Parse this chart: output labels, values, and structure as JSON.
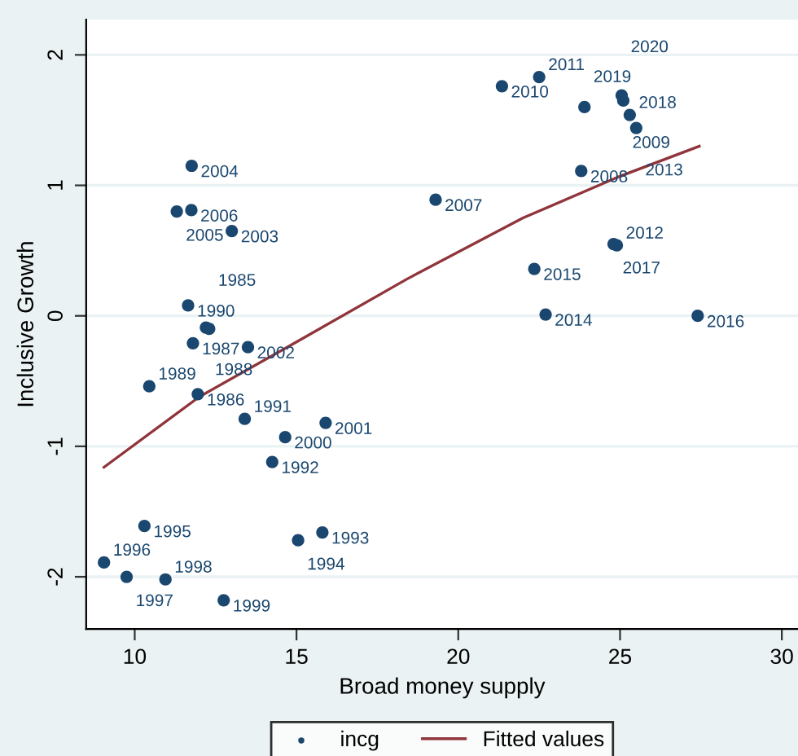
{
  "chart_data": {
    "type": "scatter",
    "xlabel": "Broad money supply",
    "ylabel": "Inclusive Growth",
    "xlim": [
      8.5,
      30.5
    ],
    "ylim": [
      -2.4,
      2.27
    ],
    "xticks": [
      10,
      15,
      20,
      25,
      30
    ],
    "yticks": [
      -2,
      -1,
      0,
      1,
      2
    ],
    "grid": "y",
    "legend": "bottom",
    "marker": "circle",
    "series": [
      {
        "name": "incg",
        "color": "#1a476f",
        "x": [
          11.76,
          11.3,
          11.75,
          13.0,
          11.65,
          12.2,
          12.3,
          11.8,
          13.5,
          19.3,
          21.35,
          22.5,
          23.9,
          25.05,
          25.1,
          25.3,
          25.5,
          23.8,
          24.8,
          24.9,
          22.35,
          22.7,
          27.4,
          10.45,
          11.95,
          13.4,
          15.9,
          14.65,
          14.25,
          10.3,
          15.8,
          15.05,
          9.05,
          9.75,
          10.95,
          12.75
        ],
        "values": [
          1.15,
          0.8,
          0.81,
          0.65,
          0.08,
          -0.09,
          -0.1,
          -0.21,
          -0.24,
          0.89,
          1.76,
          1.83,
          1.6,
          1.69,
          1.65,
          1.54,
          1.44,
          1.11,
          0.55,
          0.54,
          0.36,
          0.01,
          0.0,
          -0.54,
          -0.6,
          -0.79,
          -0.82,
          -0.93,
          -1.12,
          -1.61,
          -1.66,
          -1.72,
          -1.89,
          -2.0,
          -2.02,
          -2.18
        ]
      },
      {
        "name": "Fitted values",
        "type": "line",
        "color": "#90353b",
        "marker": "none",
        "line_style": "solid",
        "x": [
          9.05,
          12,
          15,
          18.4,
          22,
          25,
          27.45
        ],
        "values": [
          -1.16,
          -0.62,
          -0.2,
          0.28,
          0.75,
          1.07,
          1.3
        ]
      }
    ],
    "annotations": [
      {
        "text": "2004",
        "x": 11.76,
        "y": 1.15
      },
      {
        "text": "2005",
        "x": 11.3,
        "y": 0.8
      },
      {
        "text": "2006",
        "x": 11.75,
        "y": 0.81
      },
      {
        "text": "2003",
        "x": 13.0,
        "y": 0.65
      },
      {
        "text": "1990",
        "x": 11.65,
        "y": 0.08
      },
      {
        "text": "1988",
        "x": 12.2,
        "y": -0.09
      },
      {
        "text": "1985",
        "x": 12.3,
        "y": -0.1
      },
      {
        "text": "1987",
        "x": 11.8,
        "y": -0.21
      },
      {
        "text": "2002",
        "x": 13.5,
        "y": -0.24
      },
      {
        "text": "2007",
        "x": 19.3,
        "y": 0.89
      },
      {
        "text": "2010",
        "x": 21.35,
        "y": 1.76
      },
      {
        "text": "2011",
        "x": 22.5,
        "y": 1.83
      },
      {
        "text": "2019",
        "x": 23.9,
        "y": 1.6
      },
      {
        "text": "2020",
        "x": 25.05,
        "y": 1.69
      },
      {
        "text": "2009",
        "x": 25.1,
        "y": 1.65
      },
      {
        "text": "2018",
        "x": 25.3,
        "y": 1.54
      },
      {
        "text": "2013",
        "x": 25.5,
        "y": 1.44
      },
      {
        "text": "2008",
        "x": 23.8,
        "y": 1.11
      },
      {
        "text": "2017",
        "x": 24.8,
        "y": 0.55
      },
      {
        "text": "2012",
        "x": 24.9,
        "y": 0.54
      },
      {
        "text": "2015",
        "x": 22.35,
        "y": 0.36
      },
      {
        "text": "2014",
        "x": 22.7,
        "y": 0.01
      },
      {
        "text": "2016",
        "x": 27.4,
        "y": 0.0
      },
      {
        "text": "1989",
        "x": 10.45,
        "y": -0.54
      },
      {
        "text": "1986",
        "x": 11.95,
        "y": -0.6
      },
      {
        "text": "1991",
        "x": 13.4,
        "y": -0.79
      },
      {
        "text": "2001",
        "x": 15.9,
        "y": -0.82
      },
      {
        "text": "2000",
        "x": 14.65,
        "y": -0.93
      },
      {
        "text": "1992",
        "x": 14.25,
        "y": -1.12
      },
      {
        "text": "1995",
        "x": 10.3,
        "y": -1.61
      },
      {
        "text": "1993",
        "x": 15.8,
        "y": -1.66
      },
      {
        "text": "1994",
        "x": 15.05,
        "y": -1.72
      },
      {
        "text": "1996",
        "x": 9.05,
        "y": -1.89
      },
      {
        "text": "1997",
        "x": 9.75,
        "y": -2.0
      },
      {
        "text": "1998",
        "x": 10.95,
        "y": -2.02
      },
      {
        "text": "1999",
        "x": 12.75,
        "y": -2.18
      }
    ]
  }
}
